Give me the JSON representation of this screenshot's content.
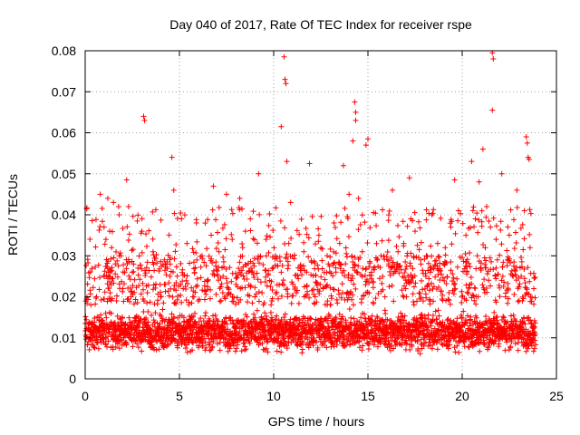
{
  "chart_data": {
    "type": "scatter",
    "title": "Day 040 of 2017, Rate Of TEC Index for receiver rspe",
    "xlabel": "GPS time / hours",
    "ylabel": "ROTI / TECUs",
    "xlim": [
      0,
      25
    ],
    "ylim": [
      0,
      0.08
    ],
    "x_ticks": [
      0,
      5,
      10,
      15,
      20,
      25
    ],
    "x_tick_labels": [
      "0",
      "5",
      "10",
      "15",
      "20",
      "25"
    ],
    "y_ticks": [
      0,
      0.01,
      0.02,
      0.03,
      0.04,
      0.05,
      0.06,
      0.07,
      0.08
    ],
    "y_tick_labels": [
      "0",
      "0.01",
      "0.02",
      "0.03",
      "0.04",
      "0.05",
      "0.06",
      "0.07",
      "0.08"
    ],
    "grid": true,
    "marker": "plus",
    "marker_color": "#ff0000",
    "x_data_range": [
      0,
      23.9
    ],
    "points": [
      [
        3.1,
        0.064
      ],
      [
        3.15,
        0.063
      ],
      [
        4.6,
        0.054
      ],
      [
        10.55,
        0.0785
      ],
      [
        10.6,
        0.073
      ],
      [
        10.65,
        0.072
      ],
      [
        10.4,
        0.0615
      ],
      [
        14.3,
        0.0675
      ],
      [
        14.35,
        0.065
      ],
      [
        14.35,
        0.063
      ],
      [
        21.6,
        0.0795
      ],
      [
        21.65,
        0.078
      ],
      [
        21.6,
        0.0655
      ],
      [
        15.0,
        0.0585
      ],
      [
        14.9,
        0.057
      ],
      [
        23.4,
        0.059
      ],
      [
        23.45,
        0.0575
      ],
      [
        23.5,
        0.054
      ],
      [
        23.55,
        0.0535
      ],
      [
        21.1,
        0.056
      ],
      [
        14.2,
        0.058
      ],
      [
        11.9,
        0.0525
      ],
      [
        10.7,
        0.053
      ],
      [
        9.2,
        0.05
      ],
      [
        17.2,
        0.049
      ],
      [
        19.6,
        0.0485
      ],
      [
        2.2,
        0.0485
      ],
      [
        20.5,
        0.053
      ],
      [
        0.8,
        0.045
      ],
      [
        1.2,
        0.044
      ],
      [
        1.5,
        0.043
      ],
      [
        1.8,
        0.04
      ],
      [
        2.3,
        0.042
      ],
      [
        4.7,
        0.046
      ],
      [
        5.9,
        0.038
      ],
      [
        6.8,
        0.047
      ],
      [
        7.5,
        0.045
      ],
      [
        8.2,
        0.044
      ],
      [
        10.9,
        0.043
      ],
      [
        13.7,
        0.052
      ],
      [
        14.5,
        0.044
      ],
      [
        16.3,
        0.046
      ],
      [
        18.4,
        0.04
      ],
      [
        20.9,
        0.048
      ],
      [
        22.1,
        0.05
      ],
      [
        22.9,
        0.046
      ],
      [
        23.3,
        0.041
      ],
      [
        12.4,
        0.035
      ],
      [
        13.2,
        0.038
      ],
      [
        5.4,
        0.033
      ],
      [
        3.6,
        0.031
      ],
      [
        9.6,
        0.034
      ],
      [
        11.6,
        0.031
      ],
      [
        16.9,
        0.033
      ],
      [
        19.1,
        0.032
      ],
      [
        1.0,
        0.037
      ],
      [
        1.1,
        0.034
      ],
      [
        1.3,
        0.036
      ],
      [
        1.4,
        0.032
      ],
      [
        1.6,
        0.028
      ],
      [
        1.9,
        0.03
      ],
      [
        2.5,
        0.026
      ],
      [
        2.8,
        0.027
      ],
      [
        4.2,
        0.029
      ],
      [
        4.5,
        0.025
      ],
      [
        6.2,
        0.03
      ],
      [
        6.5,
        0.024
      ],
      [
        7.1,
        0.031
      ],
      [
        7.8,
        0.034
      ],
      [
        8.5,
        0.036
      ],
      [
        8.8,
        0.027
      ],
      [
        10.1,
        0.03
      ],
      [
        10.4,
        0.026
      ],
      [
        10.8,
        0.033
      ],
      [
        12.9,
        0.028
      ],
      [
        13.5,
        0.033
      ],
      [
        14.0,
        0.045
      ],
      [
        14.7,
        0.031
      ],
      [
        15.3,
        0.027
      ],
      [
        15.7,
        0.03
      ],
      [
        16.1,
        0.028
      ],
      [
        16.6,
        0.031
      ],
      [
        17.5,
        0.036
      ],
      [
        17.8,
        0.029
      ],
      [
        18.1,
        0.03
      ],
      [
        18.7,
        0.033
      ],
      [
        19.4,
        0.037
      ],
      [
        19.8,
        0.041
      ],
      [
        20.2,
        0.035
      ],
      [
        20.7,
        0.039
      ],
      [
        21.3,
        0.042
      ],
      [
        21.5,
        0.037
      ],
      [
        21.8,
        0.034
      ],
      [
        22.4,
        0.029
      ],
      [
        22.7,
        0.025
      ],
      [
        23.6,
        0.032
      ],
      [
        23.8,
        0.022
      ],
      [
        0.3,
        0.018
      ],
      [
        0.6,
        0.02
      ],
      [
        2.0,
        0.022
      ],
      [
        3.3,
        0.021
      ],
      [
        4.0,
        0.02
      ],
      [
        5.2,
        0.022
      ],
      [
        6.0,
        0.019
      ],
      [
        7.3,
        0.021
      ],
      [
        8.0,
        0.023
      ],
      [
        9.0,
        0.02
      ],
      [
        9.9,
        0.019
      ],
      [
        11.2,
        0.021
      ],
      [
        12.2,
        0.02
      ],
      [
        13.0,
        0.018
      ],
      [
        14.9,
        0.021
      ],
      [
        15.9,
        0.02
      ],
      [
        17.0,
        0.022
      ],
      [
        18.3,
        0.019
      ],
      [
        19.3,
        0.021
      ],
      [
        20.4,
        0.023
      ],
      [
        21.2,
        0.021
      ],
      [
        22.3,
        0.02
      ],
      [
        23.2,
        0.019
      ]
    ]
  }
}
